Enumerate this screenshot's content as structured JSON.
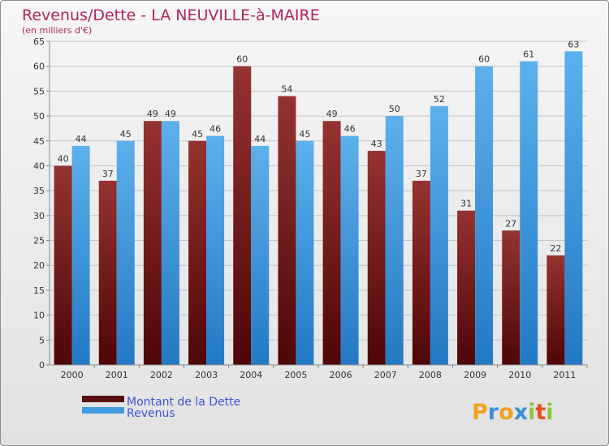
{
  "chart_data": {
    "type": "bar",
    "title": "Revenus/Dette - LA NEUVILLE-à-MAIRE",
    "subtitle": "(en milliers d'€)",
    "xlabel": "",
    "ylabel": "",
    "ylim": [
      0,
      65
    ],
    "yticks": [
      0,
      5,
      10,
      15,
      20,
      25,
      30,
      35,
      40,
      45,
      50,
      55,
      60,
      65
    ],
    "grid": true,
    "legend_position": "bottom-left",
    "categories": [
      "2000",
      "2001",
      "2002",
      "2003",
      "2004",
      "2005",
      "2006",
      "2007",
      "2008",
      "2009",
      "2010",
      "2011"
    ],
    "series": [
      {
        "name": "Montant de la Dette",
        "color": "#7a1a1a",
        "values": [
          40,
          37,
          49,
          45,
          60,
          54,
          49,
          43,
          37,
          31,
          27,
          22
        ]
      },
      {
        "name": "Revenus",
        "color": "#4aa0e2",
        "values": [
          44,
          45,
          49,
          46,
          44,
          45,
          46,
          50,
          52,
          60,
          61,
          63
        ]
      }
    ]
  },
  "brand": {
    "name": "Proxiti",
    "letters": [
      "P",
      "r",
      "o",
      "x",
      "i",
      "t",
      "i"
    ],
    "colors": [
      "#f4a020",
      "#3b8fd6",
      "#f4a020",
      "#3b8fd6",
      "#8cc63f",
      "#e94e1b",
      "#8cc63f"
    ]
  }
}
